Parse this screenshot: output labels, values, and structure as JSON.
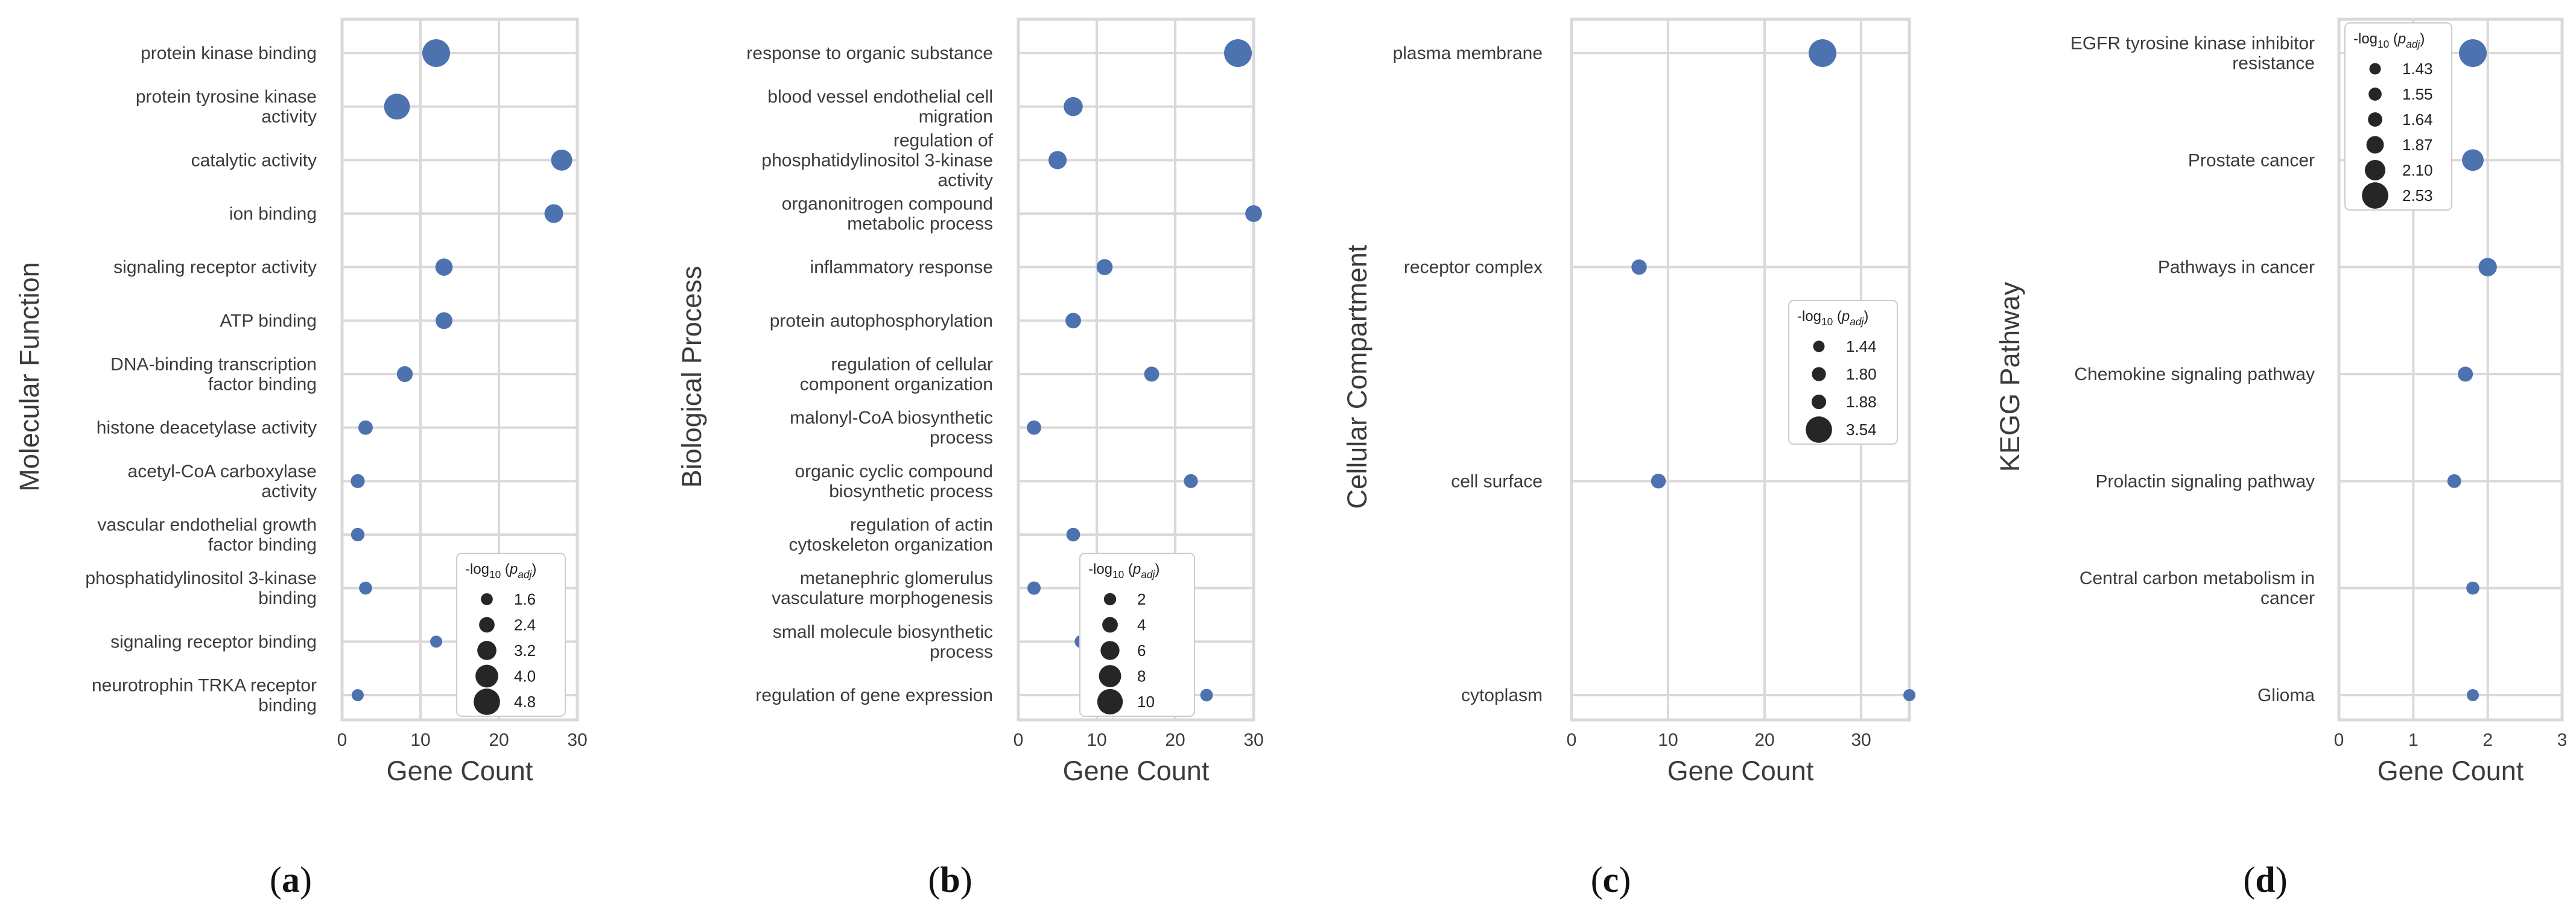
{
  "figure": {
    "colors": {
      "point": "#4c72b0",
      "grid": "#d9d9d9",
      "legend_marker": "#262626",
      "text": "#3b3b3b"
    }
  },
  "chart_data": [
    {
      "type": "scatter",
      "panel_label": "a",
      "xlabel": "Gene Count",
      "ylabel": "Molecular Function",
      "xlim": [
        0,
        30
      ],
      "xticks": [
        0,
        10,
        20,
        30
      ],
      "grid": true,
      "categories": [
        "protein kinase binding",
        "protein tyrosine kinase activity",
        "catalytic activity",
        "ion binding",
        "signaling receptor activity",
        "ATP binding",
        "DNA-binding transcription factor binding",
        "histone deacetylase activity",
        "acetyl-CoA carboxylase activity",
        "vascular endothelial growth factor binding",
        "phosphatidylinositol 3-kinase binding",
        "signaling receptor binding",
        "neurotrophin TRKA receptor binding"
      ],
      "wrapped_labels": [
        [
          "protein kinase binding"
        ],
        [
          "protein tyrosine kinase",
          "activity"
        ],
        [
          "catalytic activity"
        ],
        [
          "ion binding"
        ],
        [
          "signaling receptor activity"
        ],
        [
          "ATP binding"
        ],
        [
          "DNA-binding transcription",
          "factor binding"
        ],
        [
          "histone deacetylase activity"
        ],
        [
          "acetyl-CoA carboxylase",
          "activity"
        ],
        [
          "vascular endothelial growth",
          "factor binding"
        ],
        [
          "phosphatidylinositol 3-kinase",
          "binding"
        ],
        [
          "signaling receptor binding"
        ],
        [
          "neurotrophin TRKA receptor",
          "binding"
        ]
      ],
      "gene_count": [
        12,
        7,
        28,
        27,
        13,
        13,
        8,
        3,
        2,
        2,
        3,
        12,
        2
      ],
      "neg_log10_padj": [
        4.8,
        4.4,
        3.4,
        2.9,
        2.6,
        2.5,
        2.3,
        2.0,
        1.9,
        1.8,
        1.7,
        1.5,
        1.5
      ],
      "size_range": [
        1.5,
        4.8
      ],
      "legend": {
        "title": "-log10 (padj)",
        "title_parts": {
          "base": "-log",
          "sub": "10",
          "open": " (",
          "p": "p",
          "p_sub": "adj",
          "close": ")"
        },
        "labels": [
          "1.6",
          "2.4",
          "3.2",
          "4.0",
          "4.8"
        ],
        "values": [
          1.6,
          2.4,
          3.2,
          4.0,
          4.8
        ],
        "position": "lower-right"
      }
    },
    {
      "type": "scatter",
      "panel_label": "b",
      "xlabel": "Gene Count",
      "ylabel": "Biological Process",
      "xlim": [
        0,
        30
      ],
      "xticks": [
        0,
        10,
        20,
        30
      ],
      "grid": true,
      "categories": [
        "response to organic substance",
        "blood vessel endothelial cell migration",
        "regulation of phosphatidylinositol 3-kinase activity",
        "organonitrogen compound metabolic process",
        "inflammatory response",
        "protein autophosphorylation",
        "regulation of cellular component organization",
        "malonyl-CoA biosynthetic process",
        "organic cyclic compound biosynthetic process",
        "regulation of actin cytoskeleton organization",
        "metanephric glomerulus vasculature morphogenesis",
        "small molecule biosynthetic process",
        "regulation of gene expression"
      ],
      "wrapped_labels": [
        [
          "response to organic substance"
        ],
        [
          "blood vessel endothelial cell",
          "migration"
        ],
        [
          "regulation of",
          "phosphatidylinositol 3-kinase",
          "activity"
        ],
        [
          "organonitrogen compound",
          "metabolic process"
        ],
        [
          "inflammatory response"
        ],
        [
          "protein autophosphorylation"
        ],
        [
          "regulation of cellular",
          "component organization"
        ],
        [
          "malonyl-CoA biosynthetic",
          "process"
        ],
        [
          "organic cyclic compound",
          "biosynthetic process"
        ],
        [
          "regulation of actin",
          "cytoskeleton organization"
        ],
        [
          "metanephric glomerulus",
          "vasculature morphogenesis"
        ],
        [
          "small molecule biosynthetic",
          "process"
        ],
        [
          "regulation of gene expression"
        ]
      ],
      "gene_count": [
        28,
        7,
        5,
        30,
        11,
        7,
        17,
        2,
        22,
        7,
        2,
        8,
        24
      ],
      "neg_log10_padj": [
        10.5,
        5.5,
        5.0,
        4.2,
        3.8,
        3.5,
        3.2,
        2.8,
        2.6,
        2.4,
        2.2,
        2.0,
        1.8
      ],
      "size_range": [
        1.5,
        10.5
      ],
      "legend": {
        "title": "-log10 (padj)",
        "title_parts": {
          "base": "-log",
          "sub": "10",
          "open": " (",
          "p": "p",
          "p_sub": "adj",
          "close": ")"
        },
        "labels": [
          "2",
          "4",
          "6",
          "8",
          "10"
        ],
        "values": [
          2,
          4,
          6,
          8,
          10
        ],
        "position": "lower-right"
      }
    },
    {
      "type": "scatter",
      "panel_label": "c",
      "xlabel": "Gene Count",
      "ylabel": "Cellular Compartment",
      "xlim": [
        0,
        35
      ],
      "xticks": [
        0,
        10,
        20,
        30
      ],
      "grid": true,
      "categories": [
        "plasma membrane",
        "receptor complex",
        "cell surface",
        "cytoplasm"
      ],
      "wrapped_labels": [
        [
          "plasma membrane"
        ],
        [
          "receptor complex"
        ],
        [
          "cell surface"
        ],
        [
          "cytoplasm"
        ]
      ],
      "gene_count": [
        26,
        7,
        9,
        35
      ],
      "neg_log10_padj": [
        3.54,
        1.88,
        1.8,
        1.44
      ],
      "size_range": [
        1.44,
        3.54
      ],
      "legend": {
        "title": "-log10 (padj)",
        "title_parts": {
          "base": "-log",
          "sub": "10",
          "open": " (",
          "p": "p",
          "p_sub": "adj",
          "close": ")"
        },
        "labels": [
          "1.44",
          "1.80",
          "1.88",
          "3.54"
        ],
        "values": [
          1.44,
          1.8,
          1.88,
          3.54
        ],
        "position": "center-right"
      }
    },
    {
      "type": "scatter",
      "panel_label": "d",
      "xlabel": "Gene Count",
      "ylabel": "KEGG Pathway",
      "xlim": [
        0,
        3
      ],
      "xticks": [
        0,
        1,
        2,
        3
      ],
      "grid": true,
      "categories": [
        "EGFR tyrosine kinase inhibitor resistance",
        "Prostate cancer",
        "Pathways in cancer",
        "Chemokine signaling pathway",
        "Prolactin signaling pathway",
        "Central carbon metabolism in cancer",
        "Glioma"
      ],
      "wrapped_labels": [
        [
          "EGFR tyrosine kinase inhibitor",
          "resistance"
        ],
        [
          "Prostate cancer"
        ],
        [
          "Pathways in cancer"
        ],
        [
          "Chemokine signaling pathway"
        ],
        [
          "Prolactin signaling pathway"
        ],
        [
          "Central carbon metabolism in",
          "cancer"
        ],
        [
          "Glioma"
        ]
      ],
      "gene_count": [
        1.8,
        1.8,
        2.0,
        1.7,
        1.55,
        1.8,
        1.8
      ],
      "neg_log10_padj": [
        2.53,
        2.1,
        1.87,
        1.64,
        1.55,
        1.5,
        1.43
      ],
      "size_range": [
        1.43,
        2.53
      ],
      "legend": {
        "title": "-log10 (padj)",
        "title_parts": {
          "base": "-log",
          "sub": "10",
          "open": " (",
          "p": "p",
          "p_sub": "adj",
          "close": ")"
        },
        "labels": [
          "1.43",
          "1.55",
          "1.64",
          "1.87",
          "2.10",
          "2.53"
        ],
        "values": [
          1.43,
          1.55,
          1.64,
          1.87,
          2.1,
          2.53
        ],
        "position": "top-left"
      }
    }
  ]
}
